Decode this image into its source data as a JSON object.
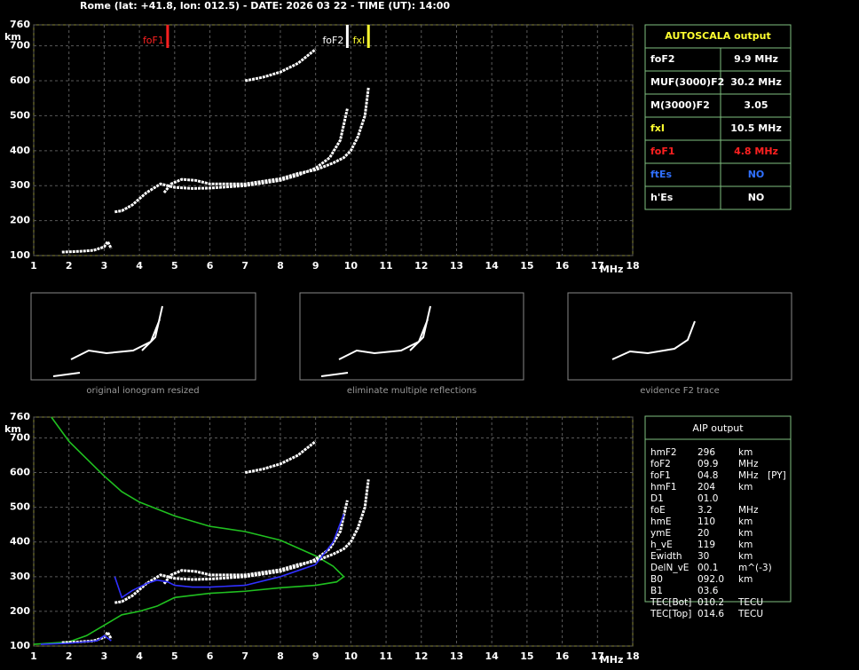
{
  "header": {
    "title": "Rome (lat: +41.8, lon: 012.5) - DATE: 2026 03 22 - TIME (UT): 14:00"
  },
  "chart_data": [
    {
      "type": "line",
      "x_label": "MHz",
      "y_label": "km",
      "grid": true,
      "xlim": [
        1,
        18
      ],
      "xticks": [
        1,
        2,
        3,
        4,
        5,
        6,
        7,
        8,
        9,
        10,
        11,
        12,
        13,
        14,
        15,
        16,
        17,
        18
      ],
      "ylim": [
        100,
        760
      ],
      "yticks": [
        100,
        200,
        300,
        400,
        500,
        600,
        700,
        760
      ],
      "markers": [
        {
          "label": "foF1",
          "value": 4.8,
          "color": "#ff2020"
        },
        {
          "label": "foF2",
          "value": 9.9,
          "color": "#ffffff"
        },
        {
          "label": "fxI",
          "value": 10.5,
          "color": "#ffff30"
        }
      ],
      "series": [
        {
          "color": "#ffffff",
          "x": [
            1.8,
            2.3,
            2.7,
            3.0,
            3.1,
            3.2,
            null,
            3.3,
            3.5,
            3.8,
            4.2,
            4.6,
            4.8,
            5.0,
            5.5,
            6,
            7,
            8,
            8.5,
            9,
            9.4,
            9.7,
            9.9
          ],
          "values": [
            110,
            112,
            115,
            125,
            140,
            120,
            null,
            225,
            228,
            245,
            280,
            305,
            300,
            295,
            292,
            293,
            300,
            315,
            330,
            350,
            380,
            430,
            520
          ]
        },
        {
          "color": "#ffffff",
          "x": [
            4.7,
            4.9,
            5.2,
            5.6,
            6,
            7,
            8,
            8.5,
            9,
            9.5,
            9.8,
            10,
            10.2,
            10.4,
            10.5
          ],
          "values": [
            280,
            305,
            318,
            315,
            305,
            305,
            320,
            335,
            345,
            365,
            380,
            400,
            440,
            500,
            580
          ]
        },
        {
          "color": "#ffffff",
          "x": [
            7,
            7.5,
            8,
            8.5,
            9
          ],
          "values": [
            600,
            610,
            625,
            650,
            690
          ]
        }
      ]
    },
    {
      "type": "line",
      "x_label": "MHz",
      "y_label": "km",
      "grid": true,
      "xlim": [
        1,
        18
      ],
      "xticks": [
        1,
        2,
        3,
        4,
        5,
        6,
        7,
        8,
        9,
        10,
        11,
        12,
        13,
        14,
        15,
        16,
        17,
        18
      ],
      "ylim": [
        100,
        760
      ],
      "yticks": [
        100,
        200,
        300,
        400,
        500,
        600,
        700,
        760
      ],
      "series": [
        {
          "color": "#20c020",
          "x": [
            1.5,
            2,
            3,
            3.5,
            4,
            5,
            6,
            7,
            8,
            9,
            9.5,
            9.8,
            9.6,
            9,
            8,
            7,
            6,
            5,
            4.7,
            4.5,
            4,
            3.5,
            3,
            2.5,
            2,
            1
          ],
          "values": [
            760,
            690,
            590,
            545,
            515,
            475,
            445,
            430,
            405,
            360,
            330,
            300,
            285,
            275,
            268,
            258,
            252,
            240,
            225,
            215,
            200,
            190,
            160,
            130,
            112,
            105
          ]
        },
        {
          "color": "#ffffff",
          "x": [
            1.8,
            2.3,
            2.7,
            3.0,
            3.1,
            3.2,
            null,
            3.3,
            3.5,
            3.8,
            4.2,
            4.6,
            4.8,
            5.0,
            5.5,
            6,
            7,
            8,
            8.5,
            9,
            9.4,
            9.7,
            9.9
          ],
          "values": [
            110,
            112,
            115,
            125,
            140,
            120,
            null,
            225,
            228,
            245,
            280,
            305,
            300,
            295,
            292,
            293,
            300,
            315,
            330,
            350,
            380,
            430,
            520
          ]
        },
        {
          "color": "#ffffff",
          "x": [
            4.7,
            4.9,
            5.2,
            5.6,
            6,
            7,
            8,
            8.5,
            9,
            9.5,
            9.8,
            10,
            10.2,
            10.4,
            10.5
          ],
          "values": [
            280,
            305,
            318,
            315,
            305,
            305,
            320,
            335,
            345,
            365,
            380,
            400,
            440,
            500,
            580
          ]
        },
        {
          "color": "#ffffff",
          "x": [
            7,
            7.5,
            8,
            8.5,
            9
          ],
          "values": [
            600,
            610,
            625,
            650,
            690
          ]
        },
        {
          "color": "#3030ff",
          "x": [
            1.2,
            2,
            2.8,
            3.0,
            3.2,
            null,
            3.3,
            3.5,
            3.8,
            4.2,
            4.5,
            4.8,
            5,
            5.5,
            6,
            7,
            8,
            9,
            9.5,
            9.8
          ],
          "values": [
            105,
            108,
            115,
            130,
            115,
            null,
            300,
            240,
            260,
            280,
            290,
            285,
            275,
            270,
            270,
            275,
            300,
            335,
            400,
            480
          ]
        }
      ]
    }
  ],
  "thumbnails": [
    "original ionogram resized",
    "eliminate multiple reflections",
    "evidence F2 trace"
  ],
  "autoscala": {
    "title": "AUTOSCALA output",
    "rows": [
      {
        "name": "foF2",
        "value": "9.9 MHz",
        "color": "#ffffff"
      },
      {
        "name": "MUF(3000)F2",
        "value": "30.2 MHz",
        "color": "#ffffff"
      },
      {
        "name": "M(3000)F2",
        "value": "3.05",
        "color": "#ffffff"
      },
      {
        "name": "fxI",
        "value": "10.5 MHz",
        "color": "#ffff30"
      },
      {
        "name": "foF1",
        "value": "4.8 MHz",
        "color": "#ff2020"
      },
      {
        "name": "ftEs",
        "value": "NO",
        "color": "#3070ff"
      },
      {
        "name": "h'Es",
        "value": "NO",
        "color": "#ffffff"
      }
    ]
  },
  "aip": {
    "title": "AIP output",
    "rows": [
      [
        "hmF2",
        "296",
        "km"
      ],
      [
        "foF2",
        "09.9",
        "MHz"
      ],
      [
        "foF1",
        "04.8",
        "MHz",
        "[PY]"
      ],
      [
        "hmF1",
        "204",
        "km"
      ],
      [
        "D1",
        "01.0"
      ],
      [
        "foE",
        "3.2",
        "MHz"
      ],
      [
        "hmE",
        "110",
        "km"
      ],
      [
        "ymE",
        "20",
        "km"
      ],
      [
        "h_vE",
        "119",
        "km"
      ],
      [
        "Ewidth",
        "30",
        "km"
      ],
      [
        "DelN_vE",
        "00.1",
        "m^(-3)"
      ],
      [
        "B0",
        "092.0",
        "km"
      ],
      [
        "B1",
        "03.6"
      ],
      [
        "TEC[Bot]",
        "010.2",
        "TECU"
      ],
      [
        "TEC[Top]",
        "014.6",
        "TECU"
      ]
    ]
  }
}
